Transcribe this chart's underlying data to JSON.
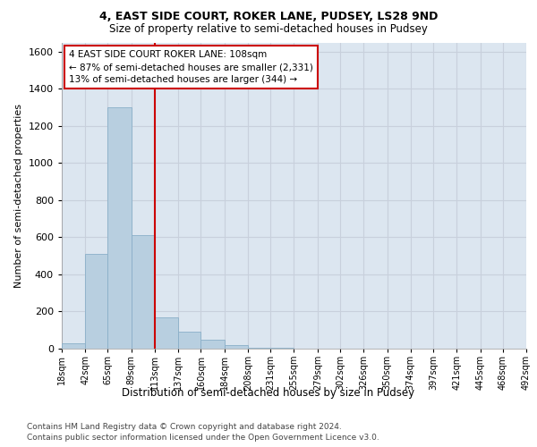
{
  "title1": "4, EAST SIDE COURT, ROKER LANE, PUDSEY, LS28 9ND",
  "title2": "Size of property relative to semi-detached houses in Pudsey",
  "xlabel": "Distribution of semi-detached houses by size in Pudsey",
  "ylabel": "Number of semi-detached properties",
  "footnote1": "Contains HM Land Registry data © Crown copyright and database right 2024.",
  "footnote2": "Contains public sector information licensed under the Open Government Licence v3.0.",
  "annotation_line1": "4 EAST SIDE COURT ROKER LANE: 108sqm",
  "annotation_line2": "← 87% of semi-detached houses are smaller (2,331)",
  "annotation_line3": "13% of semi-detached houses are larger (344) →",
  "bin_edges": [
    18,
    42,
    65,
    89,
    113,
    137,
    160,
    184,
    208,
    231,
    255,
    279,
    302,
    326,
    350,
    374,
    397,
    421,
    445,
    468,
    492
  ],
  "bin_labels": [
    "18sqm",
    "42sqm",
    "65sqm",
    "89sqm",
    "113sqm",
    "137sqm",
    "160sqm",
    "184sqm",
    "208sqm",
    "231sqm",
    "255sqm",
    "279sqm",
    "302sqm",
    "326sqm",
    "350sqm",
    "374sqm",
    "397sqm",
    "421sqm",
    "445sqm",
    "468sqm",
    "492sqm"
  ],
  "counts": [
    30,
    510,
    1300,
    610,
    170,
    90,
    50,
    20,
    5,
    3,
    2,
    1,
    1,
    0,
    0,
    0,
    0,
    0,
    0,
    0
  ],
  "bar_color": "#b8cfe0",
  "bar_edge_color": "#8aafc8",
  "vline_color": "#cc0000",
  "vline_x": 113,
  "grid_color": "#c8d0dc",
  "bg_color": "#dce6f0",
  "annotation_box_edge": "#cc0000",
  "ylim": [
    0,
    1650
  ],
  "yticks": [
    0,
    200,
    400,
    600,
    800,
    1000,
    1200,
    1400,
    1600
  ]
}
